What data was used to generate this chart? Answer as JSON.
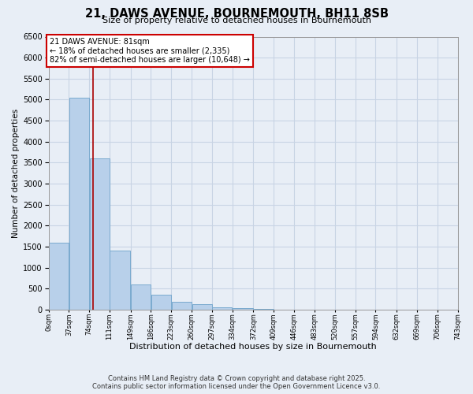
{
  "title": "21, DAWS AVENUE, BOURNEMOUTH, BH11 8SB",
  "subtitle": "Size of property relative to detached houses in Bournemouth",
  "xlabel": "Distribution of detached houses by size in Bournemouth",
  "ylabel": "Number of detached properties",
  "bar_color": "#b8d0ea",
  "bar_edge_color": "#7aaacf",
  "grid_color": "#c8d4e4",
  "background_color": "#e8eef6",
  "vline_color": "#aa0000",
  "vline_x": 81,
  "annotation_line1": "21 DAWS AVENUE: 81sqm",
  "annotation_line2": "← 18% of detached houses are smaller (2,335)",
  "annotation_line3": "82% of semi-detached houses are larger (10,648) →",
  "footer_line1": "Contains HM Land Registry data © Crown copyright and database right 2025.",
  "footer_line2": "Contains public sector information licensed under the Open Government Licence v3.0.",
  "bin_edges": [
    0,
    37,
    74,
    111,
    149,
    186,
    223,
    260,
    297,
    334,
    372,
    409,
    446,
    483,
    520,
    557,
    594,
    632,
    669,
    706,
    743
  ],
  "bin_labels": [
    "0sqm",
    "37sqm",
    "74sqm",
    "111sqm",
    "149sqm",
    "186sqm",
    "223sqm",
    "260sqm",
    "297sqm",
    "334sqm",
    "372sqm",
    "409sqm",
    "446sqm",
    "483sqm",
    "520sqm",
    "557sqm",
    "594sqm",
    "632sqm",
    "669sqm",
    "706sqm",
    "743sqm"
  ],
  "bar_heights": [
    1600,
    5050,
    3600,
    1400,
    600,
    350,
    180,
    130,
    60,
    30,
    10,
    5,
    0,
    0,
    0,
    0,
    0,
    0,
    0,
    0
  ],
  "ylim": [
    0,
    6500
  ],
  "yticks": [
    0,
    500,
    1000,
    1500,
    2000,
    2500,
    3000,
    3500,
    4000,
    4500,
    5000,
    5500,
    6000,
    6500
  ]
}
